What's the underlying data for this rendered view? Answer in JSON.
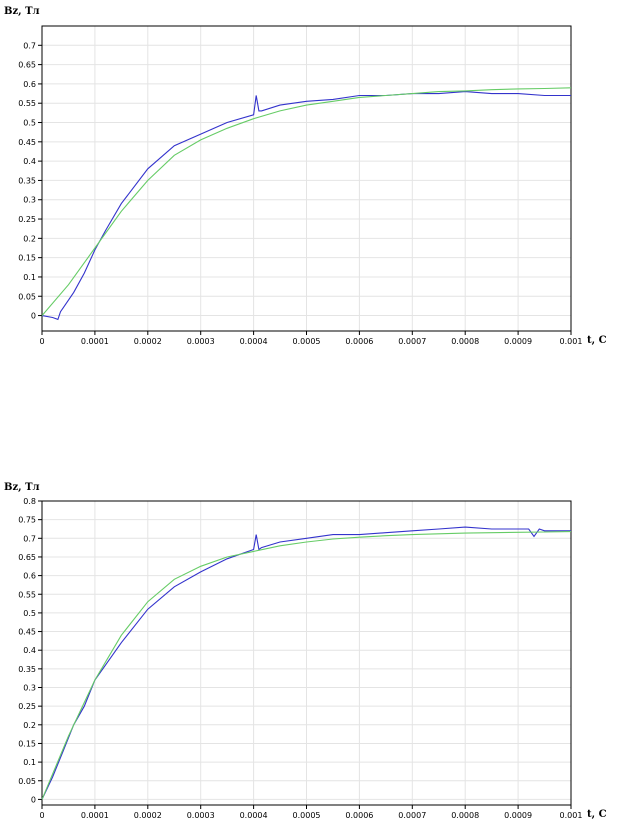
{
  "chart_data": [
    {
      "type": "line",
      "ylabel": "Bz, Тл",
      "xlabel": "t, С",
      "xlim": [
        0,
        0.001
      ],
      "ylim": [
        -0.04,
        0.75
      ],
      "xticks": [
        "0",
        "0.0001",
        "0.0002",
        "0.0003",
        "0.0004",
        "0.0005",
        "0.0006",
        "0.0007",
        "0.0008",
        "0.0009",
        "0.001"
      ],
      "xtick_values": [
        0,
        0.0001,
        0.0002,
        0.0003,
        0.0004,
        0.0005,
        0.0006,
        0.0007,
        0.0008,
        0.0009,
        0.001
      ],
      "yticks": [
        "0",
        "0.05",
        "0.1",
        "0.15",
        "0.2",
        "0.25",
        "0.3",
        "0.35",
        "0.4",
        "0.45",
        "0.5",
        "0.55",
        "0.6",
        "0.65",
        "0.7"
      ],
      "ytick_values": [
        0,
        0.05,
        0.1,
        0.15,
        0.2,
        0.25,
        0.3,
        0.35,
        0.4,
        0.45,
        0.5,
        0.55,
        0.6,
        0.65,
        0.7
      ],
      "grid": true,
      "series": [
        {
          "color": "#3333cc",
          "x": [
            0,
            2e-05,
            3e-05,
            3.5e-05,
            4e-05,
            6e-05,
            8e-05,
            0.0001,
            0.00012,
            0.00015,
            0.0002,
            0.00025,
            0.0003,
            0.00035,
            0.0004,
            0.000405,
            0.00041,
            0.000415,
            0.00045,
            0.0005,
            0.00055,
            0.0006,
            0.00065,
            0.0007,
            0.00075,
            0.0008,
            0.00085,
            0.0009,
            0.00095,
            0.001
          ],
          "y": [
            0,
            -0.005,
            -0.01,
            0.01,
            0.02,
            0.06,
            0.11,
            0.17,
            0.22,
            0.29,
            0.38,
            0.44,
            0.47,
            0.5,
            0.52,
            0.57,
            0.53,
            0.53,
            0.545,
            0.555,
            0.56,
            0.57,
            0.57,
            0.575,
            0.575,
            0.58,
            0.575,
            0.575,
            0.57,
            0.57
          ]
        },
        {
          "color": "#66cc66",
          "x": [
            0,
            5e-05,
            0.0001,
            0.00015,
            0.0002,
            0.00025,
            0.0003,
            0.00035,
            0.0004,
            0.00045,
            0.0005,
            0.00055,
            0.0006,
            0.00065,
            0.0007,
            0.00075,
            0.0008,
            0.00085,
            0.0009,
            0.00095,
            0.001
          ],
          "y": [
            0,
            0.08,
            0.175,
            0.27,
            0.35,
            0.415,
            0.455,
            0.485,
            0.51,
            0.53,
            0.545,
            0.555,
            0.565,
            0.57,
            0.575,
            0.58,
            0.582,
            0.585,
            0.587,
            0.588,
            0.59
          ]
        }
      ]
    },
    {
      "type": "line",
      "ylabel": "Bz, Тл",
      "xlabel": "t, С",
      "xlim": [
        0,
        0.001
      ],
      "ylim": [
        -0.015,
        0.8
      ],
      "xticks": [
        "0",
        "0.0001",
        "0.0002",
        "0.0003",
        "0.0004",
        "0.0005",
        "0.0006",
        "0.0007",
        "0.0008",
        "0.0009",
        "0.001"
      ],
      "xtick_values": [
        0,
        0.0001,
        0.0002,
        0.0003,
        0.0004,
        0.0005,
        0.0006,
        0.0007,
        0.0008,
        0.0009,
        0.001
      ],
      "yticks": [
        "0",
        "0.05",
        "0.1",
        "0.15",
        "0.2",
        "0.25",
        "0.3",
        "0.35",
        "0.4",
        "0.45",
        "0.5",
        "0.55",
        "0.6",
        "0.65",
        "0.7",
        "0.75",
        "0.8"
      ],
      "ytick_values": [
        0,
        0.05,
        0.1,
        0.15,
        0.2,
        0.25,
        0.3,
        0.35,
        0.4,
        0.45,
        0.5,
        0.55,
        0.6,
        0.65,
        0.7,
        0.75,
        0.8
      ],
      "grid": true,
      "series": [
        {
          "color": "#3333cc",
          "x": [
            0,
            2e-05,
            4e-05,
            6e-05,
            8e-05,
            0.0001,
            0.00012,
            0.00015,
            0.0002,
            0.00025,
            0.0003,
            0.00035,
            0.0004,
            0.000405,
            0.00041,
            0.000415,
            0.00045,
            0.0005,
            0.00055,
            0.0006,
            0.00065,
            0.0007,
            0.00075,
            0.0008,
            0.00085,
            0.0009,
            0.00092,
            0.00093,
            0.00094,
            0.00095,
            0.001
          ],
          "y": [
            0,
            0.06,
            0.13,
            0.2,
            0.25,
            0.32,
            0.36,
            0.42,
            0.51,
            0.57,
            0.61,
            0.645,
            0.67,
            0.71,
            0.67,
            0.675,
            0.69,
            0.7,
            0.71,
            0.71,
            0.715,
            0.72,
            0.725,
            0.73,
            0.725,
            0.725,
            0.725,
            0.705,
            0.725,
            0.72,
            0.72
          ]
        },
        {
          "color": "#66cc66",
          "x": [
            0,
            5e-05,
            0.0001,
            0.00015,
            0.0002,
            0.00025,
            0.0003,
            0.00035,
            0.0004,
            0.00045,
            0.0005,
            0.00055,
            0.0006,
            0.00065,
            0.0007,
            0.00075,
            0.0008,
            0.00085,
            0.0009,
            0.00095,
            0.001
          ],
          "y": [
            0,
            0.17,
            0.32,
            0.44,
            0.53,
            0.59,
            0.625,
            0.65,
            0.665,
            0.68,
            0.69,
            0.698,
            0.703,
            0.707,
            0.71,
            0.712,
            0.714,
            0.715,
            0.716,
            0.717,
            0.718
          ]
        }
      ]
    }
  ]
}
